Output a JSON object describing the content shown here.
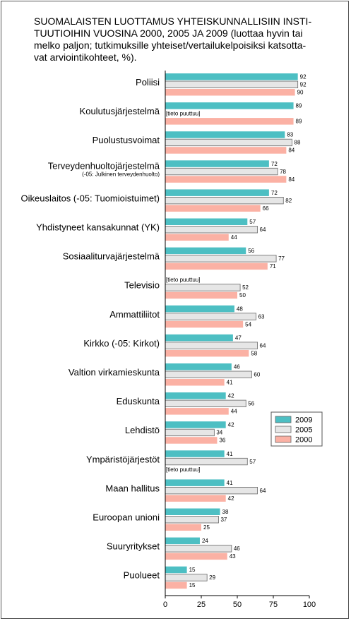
{
  "title": "SUOMALAISTEN LUOTTAMUS YHTEISKUNNALLISIIN INSTI-\nTUUTIOIHIN VUOSINA 2000, 2005 JA 2009 (luottaa hyvin tai\nmelko paljon; tutkimuksille yhteiset/vertailukelpoisiksi katsotta-\nvat arviointikohteet, %).",
  "colors": {
    "2009": "#4dbfc3",
    "2005": "#e6e6e6",
    "2000": "#fbb1a4"
  },
  "chart_data": {
    "type": "bar",
    "orientation": "horizontal",
    "xlim": [
      0,
      100
    ],
    "xticks": [
      "0",
      "25",
      "50",
      "75",
      "100"
    ],
    "legend_position": "right",
    "series_names": [
      "2009",
      "2005",
      "2000"
    ],
    "categories": [
      {
        "label": "Poliisi",
        "values": [
          92,
          92,
          90
        ]
      },
      {
        "label": "Koulutusjärjestelmä",
        "values": [
          89,
          null,
          89
        ],
        "missing_text": [
          "",
          "[tieto puuttuu]",
          ""
        ]
      },
      {
        "label": "Puolustusvoimat",
        "values": [
          83,
          88,
          84
        ]
      },
      {
        "label": "Terveydenhuoltojärjestelmä",
        "sublabel": "(-05: Julkinen terveydenhuolto)",
        "values": [
          72,
          78,
          84
        ]
      },
      {
        "label": "Oikeuslaitos (-05: Tuomioistuimet)",
        "values": [
          72,
          82,
          66
        ]
      },
      {
        "label": "Yhdistyneet kansakunnat (YK)",
        "values": [
          57,
          64,
          44
        ]
      },
      {
        "label": "Sosiaaliturvajärjestelmä",
        "values": [
          56,
          77,
          71
        ]
      },
      {
        "label": "Televisio",
        "values": [
          null,
          52,
          50
        ],
        "missing_text": [
          "[tieto puuttuu]",
          "",
          ""
        ]
      },
      {
        "label": "Ammattiliitot",
        "values": [
          48,
          63,
          54
        ]
      },
      {
        "label": "Kirkko (-05: Kirkot)",
        "values": [
          47,
          64,
          58
        ]
      },
      {
        "label": "Valtion virkamieskunta",
        "values": [
          46,
          60,
          41
        ]
      },
      {
        "label": "Eduskunta",
        "values": [
          42,
          56,
          44
        ]
      },
      {
        "label": "Lehdistö",
        "values": [
          42,
          34,
          36
        ]
      },
      {
        "label": "Ympäristöjärjestöt",
        "values": [
          41,
          57,
          null
        ],
        "missing_text": [
          "",
          "",
          "[tieto puuttuu]"
        ]
      },
      {
        "label": "Maan hallitus",
        "values": [
          41,
          64,
          42
        ]
      },
      {
        "label": "Euroopan unioni",
        "values": [
          38,
          37,
          25
        ]
      },
      {
        "label": "Suuryritykset",
        "values": [
          24,
          46,
          43
        ]
      },
      {
        "label": "Puolueet",
        "values": [
          15,
          29,
          15
        ]
      }
    ]
  }
}
